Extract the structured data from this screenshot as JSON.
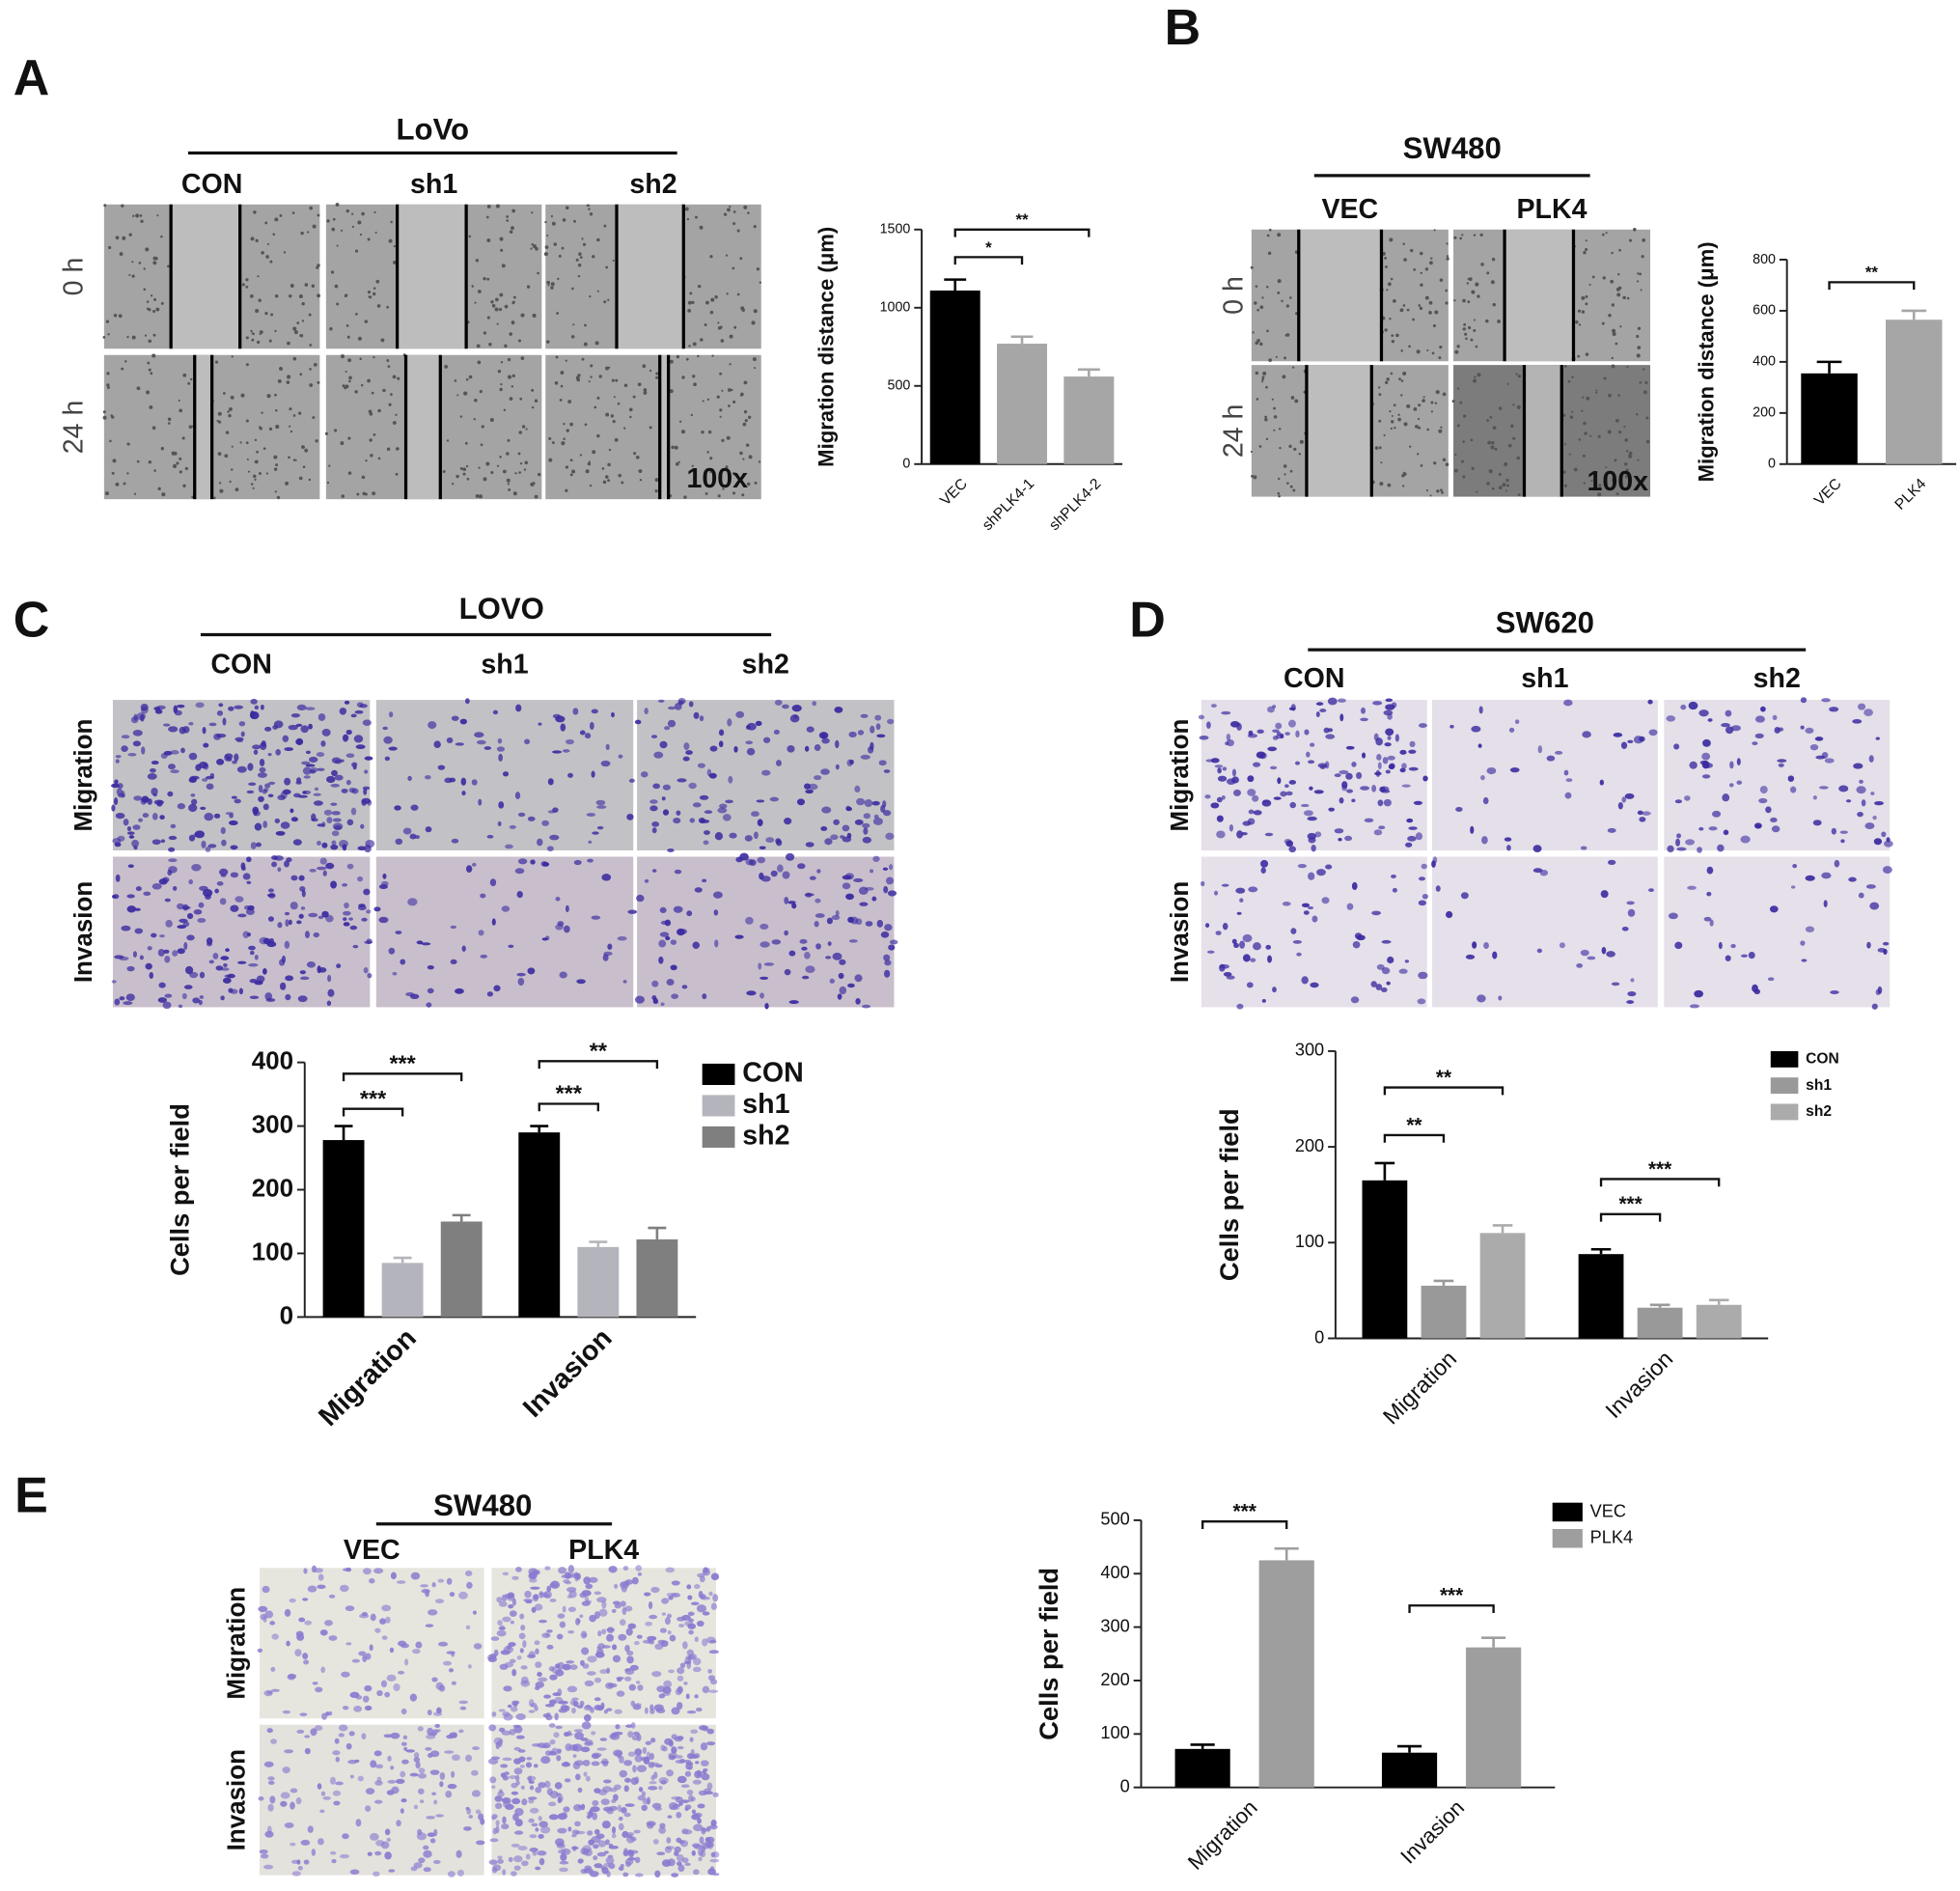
{
  "figure_panels": [
    {
      "letter": "A",
      "title": "LoVo",
      "columns": [
        "CON",
        "sh1",
        "sh2"
      ],
      "rows": [
        "0 h",
        "24 h"
      ],
      "magnification": "100x"
    },
    {
      "letter": "B",
      "title": "SW480",
      "columns": [
        "VEC",
        "PLK4"
      ],
      "rows": [
        "0 h",
        "24 h"
      ],
      "magnification": "100x"
    },
    {
      "letter": "C",
      "title": "LOVO",
      "columns": [
        "CON",
        "sh1",
        "sh2"
      ],
      "rows": [
        "Migration",
        "Invasion"
      ]
    },
    {
      "letter": "D",
      "title": "SW620",
      "columns": [
        "CON",
        "sh1",
        "sh2"
      ],
      "rows": [
        "Migration",
        "Invasion"
      ]
    },
    {
      "letter": "E",
      "title": "SW480",
      "columns": [
        "VEC",
        "PLK4"
      ],
      "rows": [
        "Migration",
        "Invasion"
      ]
    }
  ],
  "chart_data": [
    {
      "type": "bar",
      "ylabel": "Migration distance (μm)",
      "categories": [
        "VEC",
        "shPLK4-1",
        "shPLK4-2"
      ],
      "values": [
        1110,
        770,
        560
      ],
      "errors": [
        70,
        45,
        45
      ],
      "colors": [
        "#000000",
        "#a6a6a6",
        "#a6a6a6"
      ],
      "ylim": [
        0,
        1500
      ],
      "yticks": [
        0,
        500,
        1000,
        1500
      ],
      "significance": [
        {
          "pair": [
            "VEC",
            "shPLK4-1"
          ],
          "label": "*"
        },
        {
          "pair": [
            "VEC",
            "shPLK4-2"
          ],
          "label": "**"
        }
      ]
    },
    {
      "type": "bar",
      "ylabel": "Migration distance (μm)",
      "categories": [
        "VEC",
        "PLK4"
      ],
      "values": [
        355,
        565
      ],
      "errors": [
        45,
        35
      ],
      "colors": [
        "#000000",
        "#a6a6a6"
      ],
      "ylim": [
        0,
        800
      ],
      "yticks": [
        0,
        200,
        400,
        600,
        800
      ],
      "significance": [
        {
          "pair": [
            "VEC",
            "PLK4"
          ],
          "label": "**"
        }
      ]
    },
    {
      "type": "grouped_bar",
      "ylabel": "Cells per field",
      "categories": [
        "Migration",
        "Invasion"
      ],
      "series": [
        {
          "name": "CON",
          "color": "#000000",
          "values": [
            278,
            290
          ],
          "errors": [
            22,
            10
          ]
        },
        {
          "name": "sh1",
          "color": "#b4b4bc",
          "values": [
            85,
            110
          ],
          "errors": [
            8,
            8
          ]
        },
        {
          "name": "sh2",
          "color": "#7f7f7f",
          "values": [
            150,
            122
          ],
          "errors": [
            10,
            18
          ]
        }
      ],
      "ylim": [
        0,
        400
      ],
      "yticks": [
        0,
        100,
        200,
        300,
        400
      ],
      "legend": "upper right",
      "significance": [
        {
          "category": "Migration",
          "pair": [
            "CON",
            "sh1"
          ],
          "label": "***"
        },
        {
          "category": "Migration",
          "pair": [
            "CON",
            "sh2"
          ],
          "label": "***"
        },
        {
          "category": "Invasion",
          "pair": [
            "CON",
            "sh1"
          ],
          "label": "***"
        },
        {
          "category": "Invasion",
          "pair": [
            "CON",
            "sh2"
          ],
          "label": "**"
        }
      ]
    },
    {
      "type": "grouped_bar",
      "ylabel": "Cells per field",
      "categories": [
        "Migration",
        "Invasion"
      ],
      "series": [
        {
          "name": "CON",
          "color": "#000000",
          "values": [
            165,
            88
          ],
          "errors": [
            18,
            5
          ]
        },
        {
          "name": "sh1",
          "color": "#999999",
          "values": [
            55,
            32
          ],
          "errors": [
            5,
            3
          ]
        },
        {
          "name": "sh2",
          "color": "#ababab",
          "values": [
            110,
            35
          ],
          "errors": [
            8,
            5
          ]
        }
      ],
      "ylim": [
        0,
        300
      ],
      "yticks": [
        0,
        100,
        200,
        300
      ],
      "legend": "upper right",
      "significance": [
        {
          "category": "Migration",
          "pair": [
            "CON",
            "sh1"
          ],
          "label": "**"
        },
        {
          "category": "Migration",
          "pair": [
            "CON",
            "sh2"
          ],
          "label": "**"
        },
        {
          "category": "Invasion",
          "pair": [
            "CON",
            "sh1"
          ],
          "label": "***"
        },
        {
          "category": "Invasion",
          "pair": [
            "CON",
            "sh2"
          ],
          "label": "***"
        }
      ]
    },
    {
      "type": "grouped_bar",
      "ylabel": "Cells per field",
      "categories": [
        "Migration",
        "Invasion"
      ],
      "series": [
        {
          "name": "VEC",
          "color": "#000000",
          "values": [
            72,
            65
          ],
          "errors": [
            8,
            12
          ]
        },
        {
          "name": "PLK4",
          "color": "#9e9e9e",
          "values": [
            425,
            262
          ],
          "errors": [
            22,
            18
          ]
        }
      ],
      "ylim": [
        0,
        500
      ],
      "yticks": [
        0,
        100,
        200,
        300,
        400,
        500
      ],
      "legend": "upper right",
      "significance": [
        {
          "category": "Migration",
          "pair": [
            "VEC",
            "PLK4"
          ],
          "label": "***"
        },
        {
          "category": "Invasion",
          "pair": [
            "VEC",
            "PLK4"
          ],
          "label": "***"
        }
      ]
    }
  ]
}
